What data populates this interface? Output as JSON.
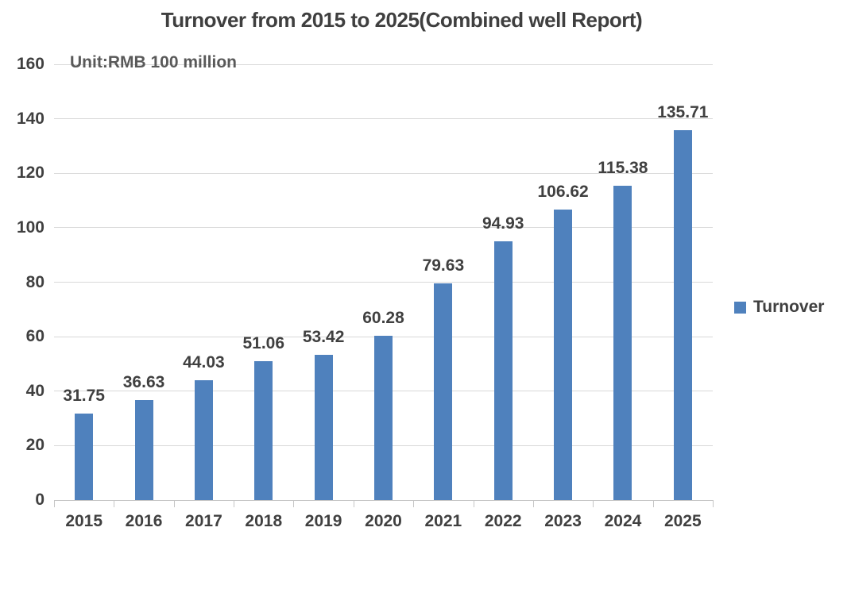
{
  "chart_data": {
    "type": "bar",
    "title": "Turnover from 2015 to 2025(Combined well Report)",
    "unit_note": "Unit:RMB 100 million",
    "categories": [
      "2015",
      "2016",
      "2017",
      "2018",
      "2019",
      "2020",
      "2021",
      "2022",
      "2023",
      "2024",
      "2025"
    ],
    "series": [
      {
        "name": "Turnover",
        "values": [
          31.75,
          36.63,
          44.03,
          51.06,
          53.42,
          60.28,
          79.63,
          94.93,
          106.62,
          115.38,
          135.71
        ],
        "color": "#4F81BD"
      }
    ],
    "xlabel": "",
    "ylabel": "",
    "ylim": [
      0,
      160
    ],
    "ytick_step": 20,
    "grid": true,
    "legend_position": "right",
    "value_labels_shown": true
  },
  "colors": {
    "bar": "#4F81BD",
    "text": "#404040",
    "title_text": "#3F3F3F",
    "unit_text": "#595959",
    "gridline": "#D9D9D9",
    "axis_line": "#C6C6C6",
    "background": "#FFFFFF"
  }
}
